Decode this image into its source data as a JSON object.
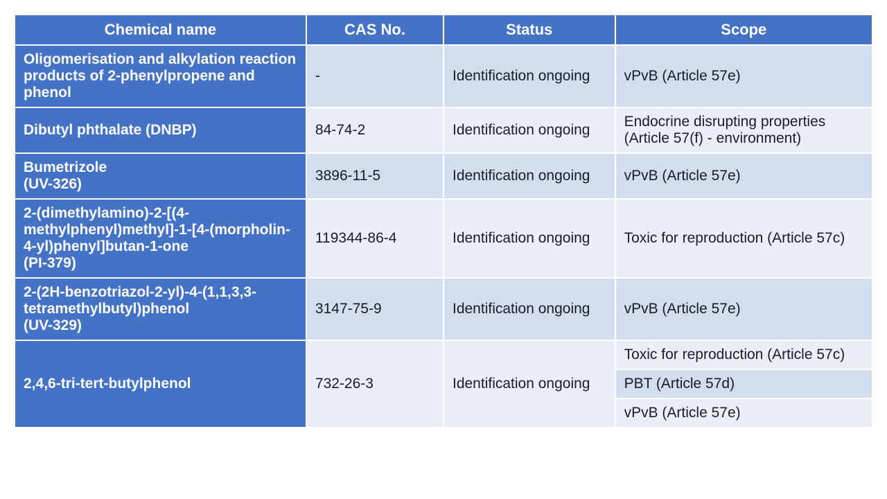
{
  "table": {
    "header_bg": "#4472c4",
    "header_fg": "#ffffff",
    "row_odd_bg": "#d2deef",
    "row_even_bg": "#eaeff7",
    "name_col_bg": "#4472c4",
    "name_col_fg": "#ffffff",
    "border_color": "#ffffff",
    "font_family": "Arial",
    "header_fontsize": 22,
    "body_fontsize": 21,
    "columns": [
      {
        "key": "name",
        "label": "Chemical name",
        "width_pct": 34
      },
      {
        "key": "cas",
        "label": "CAS No.",
        "width_pct": 16
      },
      {
        "key": "status",
        "label": "Status",
        "width_pct": 20
      },
      {
        "key": "scope",
        "label": "Scope",
        "width_pct": 30
      }
    ],
    "rows": [
      {
        "name": "Oligomerisation and alkylation reaction products of 2-phenylpropene and phenol",
        "cas": "-",
        "status": "Identification ongoing",
        "scopes": [
          "vPvB (Article 57e)"
        ]
      },
      {
        "name": "Dibutyl phthalate (DNBP)",
        "cas": "84-74-2",
        "status": "Identification ongoing",
        "scopes": [
          "Endocrine disrupting properties (Article 57(f) - environment)"
        ]
      },
      {
        "name": "Bumetrizole\n(UV-326)",
        "cas": "3896-11-5",
        "status": "Identification ongoing",
        "scopes": [
          "vPvB (Article 57e)"
        ]
      },
      {
        "name": "2-(dimethylamino)-2-[(4-methylphenyl)methyl]-1-[4-(morpholin-4-yl)phenyl]butan-1-one\n(PI-379)",
        "cas": "119344-86-4",
        "status": "Identification ongoing",
        "scopes": [
          "Toxic for reproduction (Article 57c)"
        ]
      },
      {
        "name": "2-(2H-benzotriazol-2-yl)-4-(1,1,3,3-tetramethylbutyl)phenol\n(UV-329)",
        "cas": "3147-75-9",
        "status": "Identification ongoing",
        "scopes": [
          "vPvB (Article 57e)"
        ]
      },
      {
        "name": "2,4,6-tri-tert-butylphenol",
        "cas": "732-26-3",
        "status": "Identification ongoing",
        "scopes": [
          "Toxic for reproduction (Article 57c)",
          "PBT (Article 57d)",
          "vPvB (Article 57e)"
        ]
      }
    ]
  }
}
